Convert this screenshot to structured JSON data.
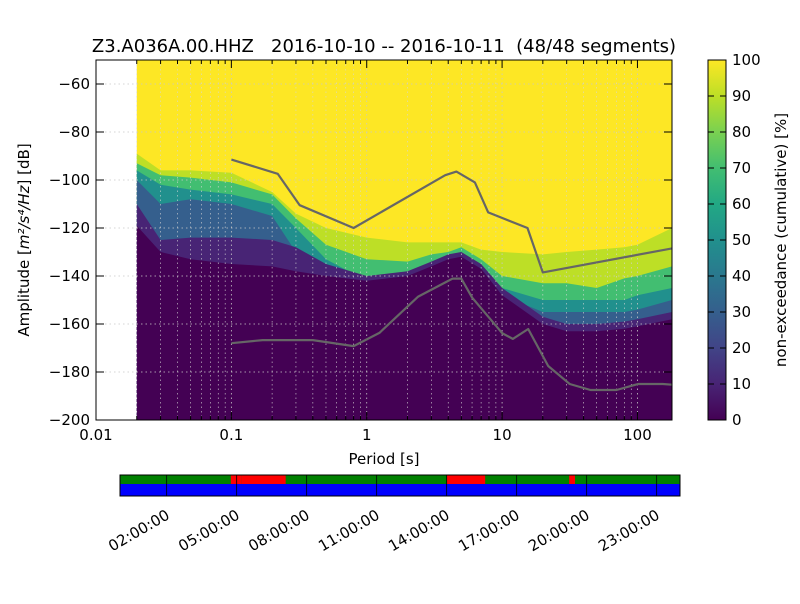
{
  "chart_data": [
    {
      "type": "heatmap",
      "title": "Z3.A036A.00.HHZ   2016-10-10 -- 2016-10-11  (48/48 segments)",
      "xlabel": "Period [s]",
      "ylabel": "Amplitude [m^2/s^4/Hz] [dB]",
      "ylabel_prefix": "Amplitude [",
      "ylabel_math": "m²/s⁴/Hz",
      "ylabel_suffix": "] [dB]",
      "xscale": "log",
      "xlim": [
        0.01,
        180
      ],
      "ylim": [
        -200,
        -50
      ],
      "x_ticks": [
        {
          "value": 0.01,
          "label": "0.01"
        },
        {
          "value": 0.1,
          "label": "0.1"
        },
        {
          "value": 1,
          "label": "1"
        },
        {
          "value": 10,
          "label": "10"
        },
        {
          "value": 100,
          "label": "100"
        }
      ],
      "y_ticks": [
        {
          "value": -60,
          "label": "−60"
        },
        {
          "value": -80,
          "label": "−80"
        },
        {
          "value": -100,
          "label": "−100"
        },
        {
          "value": -120,
          "label": "−120"
        },
        {
          "value": -140,
          "label": "−140"
        },
        {
          "value": -160,
          "label": "−160"
        },
        {
          "value": -180,
          "label": "−180"
        },
        {
          "value": -200,
          "label": "−200"
        }
      ],
      "grid": true,
      "data_start_period": 0.02,
      "percentile_bands": {
        "period": [
          0.02,
          0.03,
          0.05,
          0.1,
          0.2,
          0.3,
          0.5,
          1,
          2,
          3,
          4,
          5,
          7,
          10,
          20,
          30,
          50,
          80,
          100,
          180
        ],
        "p5": [
          -119,
          -130,
          -133,
          -135,
          -136,
          -138,
          -140,
          -142,
          -140,
          -136,
          -133,
          -132,
          -137,
          -148,
          -160,
          -163,
          -163,
          -162,
          -161,
          -158
        ],
        "p20": [
          -110,
          -125,
          -124,
          -124,
          -125,
          -128,
          -135,
          -140,
          -138,
          -134,
          -131,
          -130,
          -135,
          -145,
          -157,
          -160,
          -160,
          -159,
          -158,
          -155
        ],
        "p40": [
          -100,
          -110,
          -108,
          -110,
          -115,
          -130,
          -148,
          -152,
          -144,
          -137,
          -134,
          -132,
          -137,
          -148,
          -155,
          -155,
          -155,
          -155,
          -154,
          -150
        ],
        "p60": [
          -96,
          -102,
          -104,
          -106,
          -110,
          -120,
          -133,
          -142,
          -140,
          -136,
          -133,
          -130,
          -136,
          -145,
          -150,
          -150,
          -150,
          -150,
          -148,
          -145
        ],
        "p80": [
          -93,
          -98,
          -99,
          -101,
          -106,
          -116,
          -127,
          -133,
          -134,
          -131,
          -130,
          -128,
          -133,
          -140,
          -143,
          -143,
          -145,
          -141,
          -140,
          -136
        ],
        "p95": [
          -89,
          -96,
          -96,
          -97,
          -105,
          -114,
          -120,
          -124,
          -126,
          -126,
          -126,
          -126,
          -129,
          -130,
          -131,
          -130,
          -129,
          -128,
          -127,
          -120
        ]
      },
      "noise_models": [
        {
          "period": [
            0.1,
            0.22,
            0.32,
            0.8,
            3.8,
            4.6,
            6.3,
            7.9,
            15.4,
            20,
            180
          ],
          "values": [
            -91.5,
            -97.4,
            -110.5,
            -120,
            -98,
            -96.5,
            -101,
            -113.5,
            -120,
            -138.5,
            -128.5
          ]
        },
        {
          "period": [
            0.1,
            0.17,
            0.4,
            0.8,
            1.24,
            2.4,
            4.3,
            5,
            6,
            10,
            12,
            15.6,
            21.9,
            31.6,
            45,
            70,
            101,
            154,
            180
          ],
          "values": [
            -168,
            -166.7,
            -166.7,
            -169.2,
            -163.7,
            -148.6,
            -141.1,
            -141.1,
            -149,
            -163.8,
            -166.2,
            -162.1,
            -177.5,
            -185,
            -187.5,
            -187.5,
            -185,
            -185,
            -185.3
          ]
        }
      ],
      "colorbar": {
        "label": "non-exceedance (cumulative) [%]",
        "range": [
          0,
          100
        ],
        "ticks": [
          "0",
          "10",
          "20",
          "30",
          "40",
          "50",
          "60",
          "70",
          "80",
          "90",
          "100"
        ],
        "colormap": "viridis"
      }
    },
    {
      "type": "timeline",
      "tick_labels": [
        "02:00:00",
        "05:00:00",
        "08:00:00",
        "11:00:00",
        "14:00:00",
        "17:00:00",
        "20:00:00",
        "23:00:00"
      ],
      "tick_hours": [
        2,
        5,
        8,
        11,
        14,
        17,
        20,
        23
      ],
      "range_hours": [
        0,
        24
      ],
      "green_color": "#008000",
      "red_color": "#ff0000",
      "blue_color": "#0000ff",
      "red_segments": [
        [
          4.75,
          5.2
        ],
        [
          5.2,
          7.1
        ],
        [
          14,
          15.65
        ],
        [
          19.25,
          19.5
        ]
      ]
    }
  ]
}
